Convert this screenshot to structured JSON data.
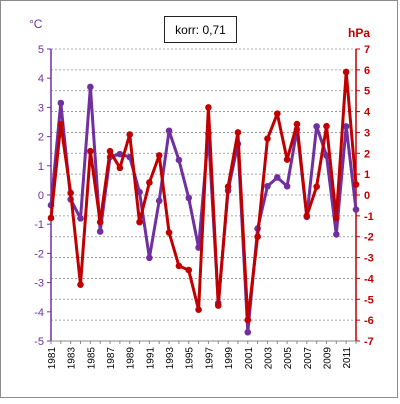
{
  "chart_data": {
    "type": "line",
    "annotation": "korr: 0,71",
    "left_unit": "°C",
    "right_unit": "hPa",
    "x": [
      1981,
      1982,
      1983,
      1984,
      1985,
      1986,
      1987,
      1988,
      1989,
      1990,
      1991,
      1992,
      1993,
      1994,
      1995,
      1996,
      1997,
      1998,
      1999,
      2000,
      2001,
      2002,
      2003,
      2004,
      2005,
      2006,
      2007,
      2008,
      2009,
      2010,
      2011,
      2012
    ],
    "x_tick_labels": [
      "1981",
      "1983",
      "1985",
      "1987",
      "1989",
      "1991",
      "1993",
      "1995",
      "1997",
      "1999",
      "2001",
      "2003",
      "2005",
      "2007",
      "2009",
      "2011"
    ],
    "left_axis": {
      "ylim": [
        -5,
        5
      ],
      "ticks": [
        "-5",
        "-4",
        "-3",
        "-2",
        "-1",
        "0",
        "1",
        "2",
        "3",
        "4",
        "5"
      ]
    },
    "right_axis": {
      "ylim": [
        -7,
        7
      ],
      "ticks": [
        "-7",
        "-6",
        "-5",
        "-4",
        "-3",
        "-2",
        "-1",
        "0",
        "1",
        "2",
        "3",
        "4",
        "5",
        "6",
        "7"
      ]
    },
    "grid": "horizontal dashed lines at right-axis ticks",
    "series": [
      {
        "axis": "left",
        "color": "#7030a0",
        "values": [
          -0.35,
          3.15,
          -0.15,
          -0.8,
          3.7,
          -1.25,
          1.3,
          1.4,
          1.3,
          0.1,
          -2.15,
          -0.2,
          2.2,
          1.2,
          -0.1,
          -1.8,
          2.1,
          -3.7,
          0.15,
          1.75,
          -4.7,
          -1.15,
          0.3,
          0.6,
          0.3,
          2.25,
          -0.75,
          2.35,
          1.35,
          -1.35,
          2.35,
          -0.5
        ]
      },
      {
        "axis": "right",
        "color": "#c00000",
        "values": [
          -1.1,
          3.4,
          0.1,
          -4.3,
          2.1,
          -1.3,
          2.1,
          1.3,
          2.9,
          -1.3,
          0.6,
          1.9,
          -1.8,
          -3.4,
          -3.6,
          -5.5,
          4.2,
          -5.3,
          0.4,
          3.0,
          -6.0,
          -2.0,
          2.7,
          3.9,
          1.7,
          3.4,
          -1.0,
          0.4,
          3.3,
          -1.1,
          5.9,
          0.5
        ]
      }
    ]
  }
}
